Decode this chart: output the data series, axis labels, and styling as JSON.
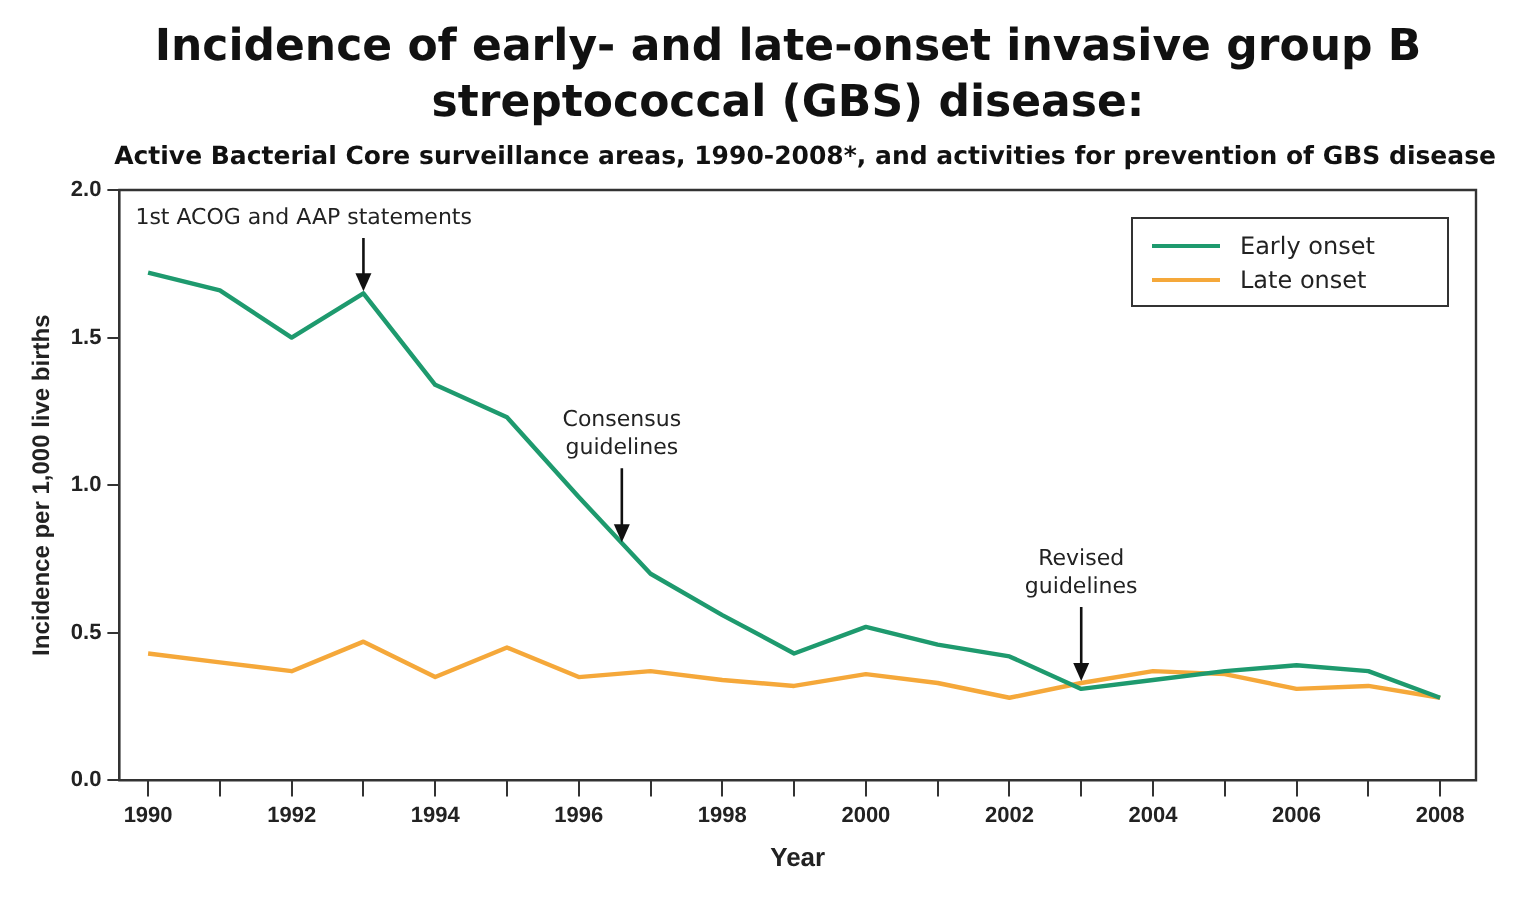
{
  "chart_data": {
    "type": "line",
    "title": "Incidence of early- and late-onset invasive group B streptococcal (GBS) disease:",
    "subtitle": "Active Bacterial Core surveillance areas, 1990-2008*, and activities for prevention of GBS disease",
    "xlabel": "Year",
    "ylabel": "Incidence per 1,000 live births",
    "x": [
      1990,
      1991,
      1992,
      1993,
      1994,
      1995,
      1996,
      1997,
      1998,
      1999,
      2000,
      2001,
      2002,
      2003,
      2004,
      2005,
      2006,
      2007,
      2008
    ],
    "series": [
      {
        "name": "Early onset",
        "color": "#1e9a6e",
        "values": [
          1.72,
          1.66,
          1.5,
          1.65,
          1.34,
          1.23,
          0.96,
          0.7,
          0.56,
          0.43,
          0.52,
          0.46,
          0.42,
          0.31,
          0.34,
          0.37,
          0.39,
          0.37,
          0.28
        ]
      },
      {
        "name": "Late onset",
        "color": "#f5a83a",
        "values": [
          0.43,
          0.4,
          0.37,
          0.47,
          0.35,
          0.45,
          0.35,
          0.37,
          0.34,
          0.32,
          0.36,
          0.33,
          0.28,
          0.33,
          0.37,
          0.36,
          0.31,
          0.32,
          0.28
        ]
      }
    ],
    "xlim": [
      1989.6,
      2008.5
    ],
    "ylim": [
      0,
      2
    ],
    "xticks": [
      1990,
      {
        "value": 1991,
        "label": null
      },
      1992,
      {
        "value": 1993,
        "label": null
      },
      1994,
      {
        "value": 1995,
        "label": null
      },
      1996,
      {
        "value": 1997,
        "label": null
      },
      1998,
      {
        "value": 1999,
        "label": null
      },
      2000,
      {
        "value": 2001,
        "label": null
      },
      2002,
      {
        "value": 2003,
        "label": null
      },
      2004,
      {
        "value": 2005,
        "label": null
      },
      2006,
      {
        "value": 2007,
        "label": null
      },
      2008
    ],
    "yticks": [
      {
        "value": 0,
        "label": "0.0"
      },
      {
        "value": 0.5,
        "label": "0.5"
      },
      {
        "value": 1,
        "label": "1.0"
      },
      {
        "value": 1.5,
        "label": "1.5"
      },
      {
        "value": 2,
        "label": "2.0"
      }
    ],
    "annotations": [
      {
        "text": "1st ACOG and AAP statements",
        "x": 1993,
        "y": 1.65
      },
      {
        "text": "Consensus guidelines",
        "x": 1996.6,
        "y": 0.8
      },
      {
        "text": "Revised guidelines",
        "x": 2003,
        "y": 0.33
      }
    ],
    "grid": false,
    "legend": "top right",
    "marker": "none",
    "line_style": "solid"
  }
}
